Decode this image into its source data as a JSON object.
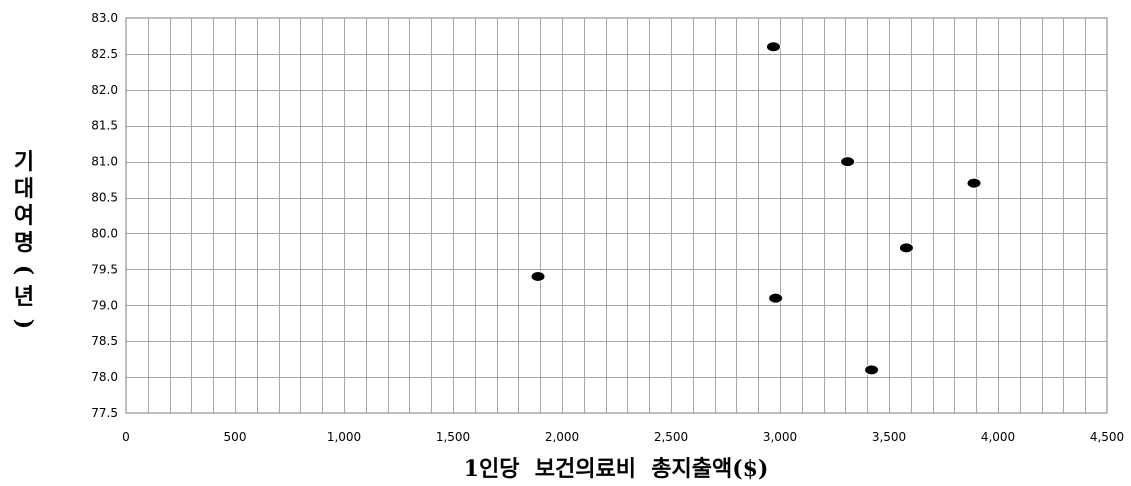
{
  "chart_data": {
    "type": "scatter",
    "title": "",
    "xlabel": "1인당  보건의료비  총지출액($)",
    "ylabel": "기대여명(년)",
    "xlim": [
      0,
      4500
    ],
    "ylim": [
      77.5,
      83.0
    ],
    "x_ticks": [
      0,
      500,
      1000,
      1500,
      2000,
      2500,
      3000,
      3500,
      4000,
      4500
    ],
    "x_tick_labels": [
      "0",
      "500",
      "1,000",
      "1,500",
      "2,000",
      "2,500",
      "3,000",
      "3,500",
      "4,000",
      "4,500"
    ],
    "y_ticks": [
      77.5,
      78.0,
      78.5,
      79.0,
      79.5,
      80.0,
      80.5,
      81.0,
      81.5,
      82.0,
      82.5,
      83.0
    ],
    "y_tick_labels": [
      "77.5",
      "78.0",
      "78.5",
      "79.0",
      "79.5",
      "80.0",
      "80.5",
      "81.0",
      "81.5",
      "82.0",
      "82.5",
      "83.0"
    ],
    "grid": true,
    "x_minor_step": 100,
    "legend": "none",
    "marker_color": "#000000",
    "points": [
      {
        "x": 1890,
        "y": 79.4
      },
      {
        "x": 2970,
        "y": 82.6
      },
      {
        "x": 2980,
        "y": 79.1
      },
      {
        "x": 3310,
        "y": 81.0
      },
      {
        "x": 3420,
        "y": 78.1
      },
      {
        "x": 3580,
        "y": 79.8
      },
      {
        "x": 3890,
        "y": 80.7
      }
    ]
  }
}
